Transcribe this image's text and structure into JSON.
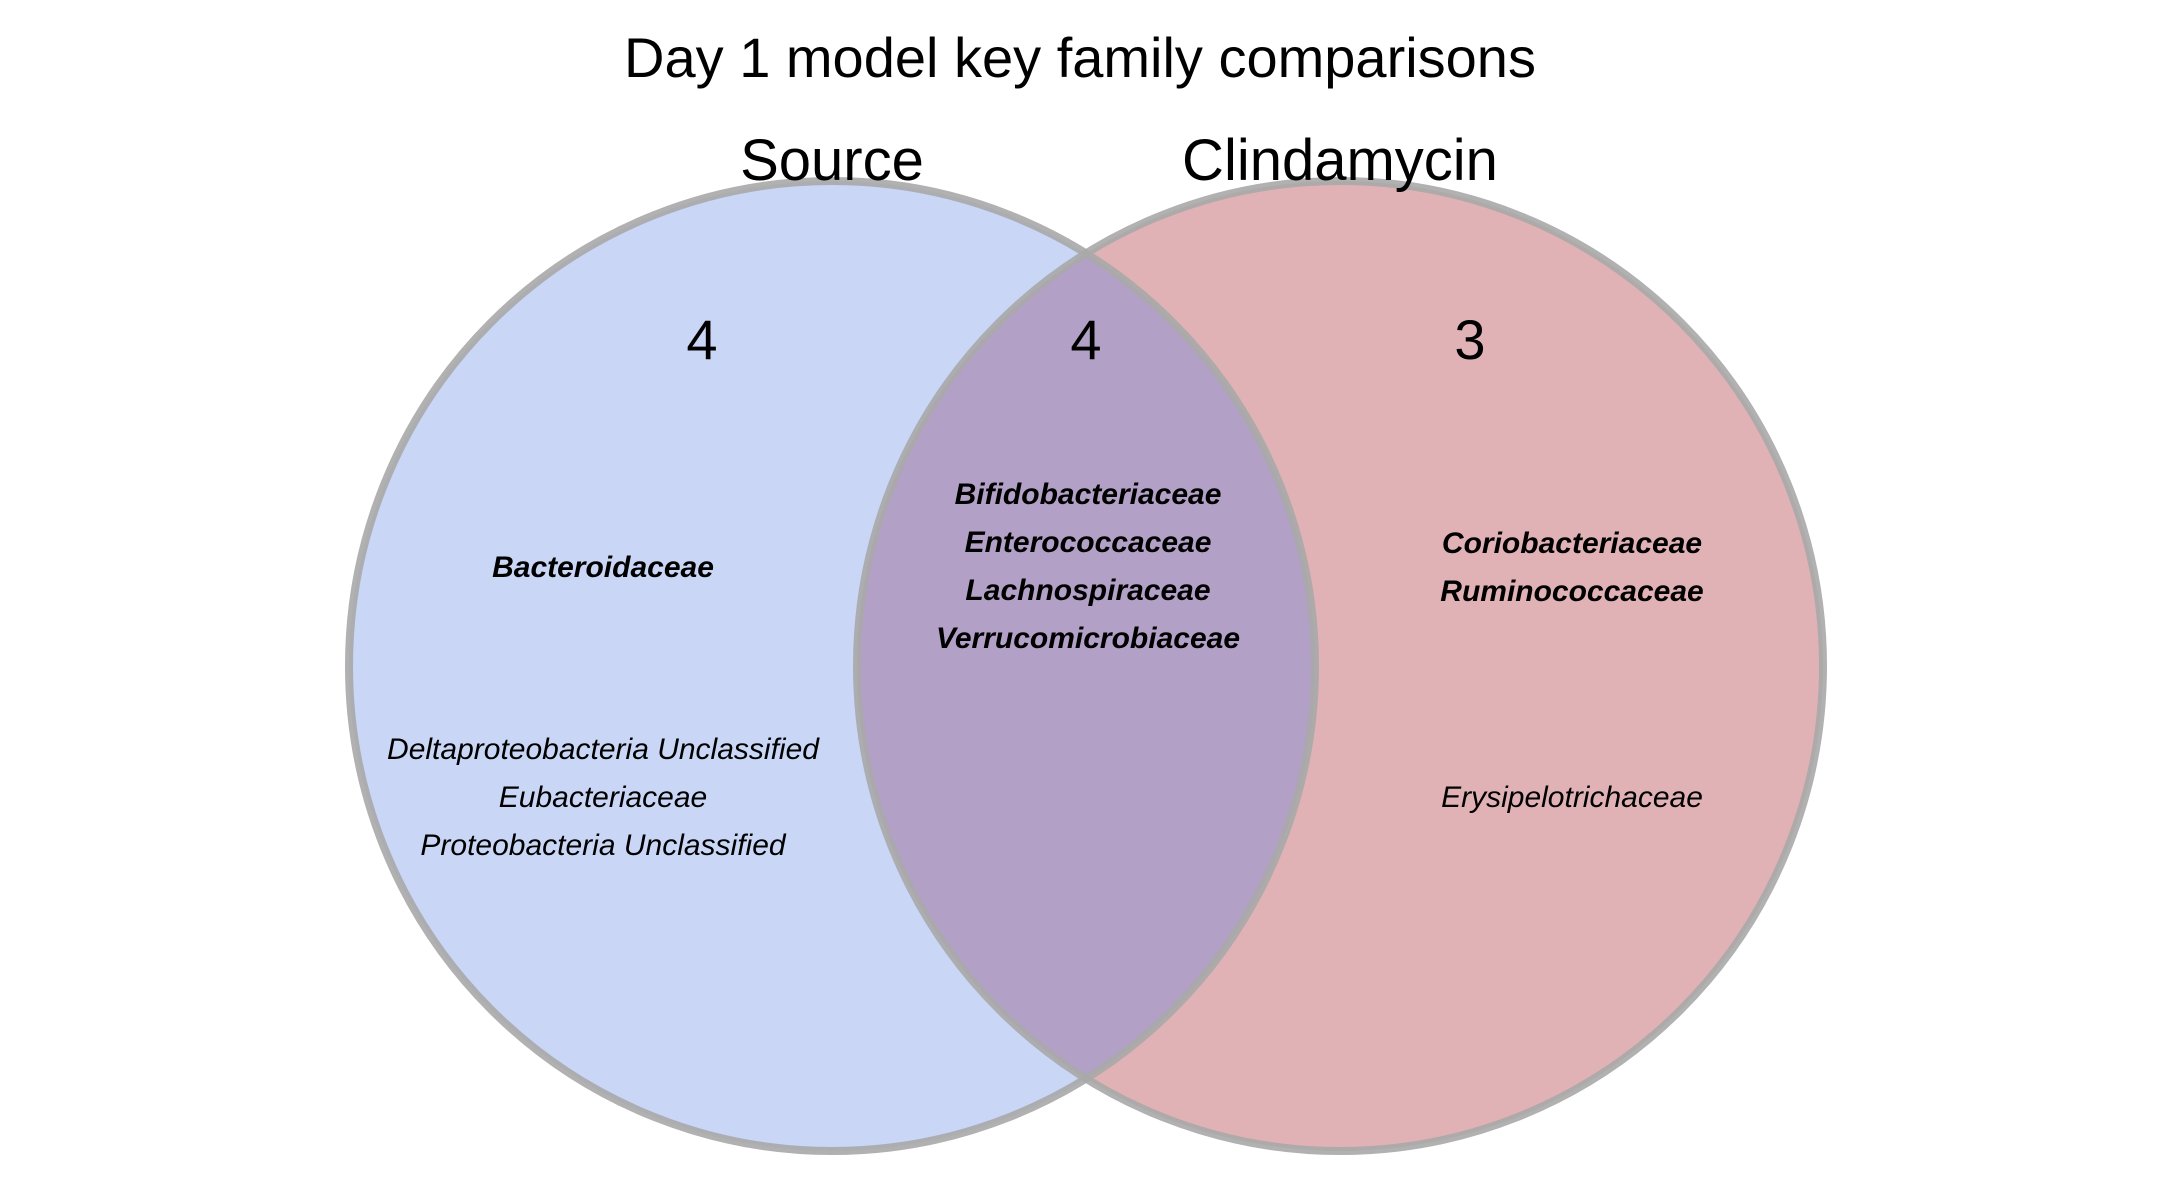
{
  "title": "Day 1 model key family comparisons",
  "sets": [
    {
      "name": "Source",
      "color": "#c9d6f5"
    },
    {
      "name": "Clindamycin",
      "color": "#e0b2b6"
    }
  ],
  "overlap_color": "#b3a0c6",
  "outline_color": "#a8a8a8",
  "regions": {
    "source_only": {
      "count": "4",
      "bold_families": [
        "Bacteroidaceae"
      ],
      "regular_families": [
        "Deltaproteobacteria Unclassified",
        "Eubacteriaceae",
        "Proteobacteria Unclassified"
      ]
    },
    "shared": {
      "count": "4",
      "bold_families": [
        "Bifidobacteriaceae",
        "Enterococcaceae",
        "Lachnospiraceae",
        "Verrucomicrobiaceae"
      ],
      "regular_families": []
    },
    "clindamycin_only": {
      "count": "3",
      "bold_families": [
        "Coriobacteriaceae",
        "Ruminococcaceae"
      ],
      "regular_families": [
        "Erysipelotrichaceae"
      ]
    }
  }
}
